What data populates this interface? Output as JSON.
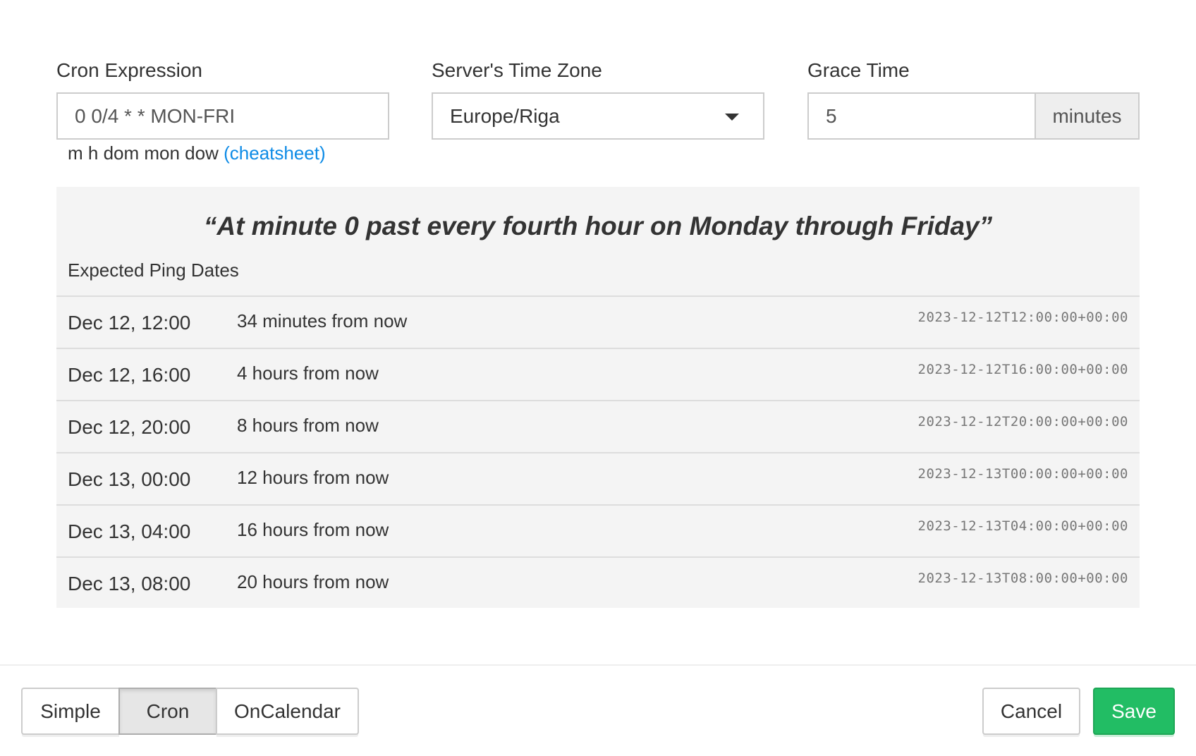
{
  "cron": {
    "label": "Cron Expression",
    "value": "0 0/4 * * MON-FRI",
    "hint": "m h dom mon dow",
    "cheatsheet": "(cheatsheet)"
  },
  "timezone": {
    "label": "Server's Time Zone",
    "value": "Europe/Riga"
  },
  "grace": {
    "label": "Grace Time",
    "value": "5",
    "unit": "minutes"
  },
  "description": "“At minute 0 past every fourth hour on Monday through Friday”",
  "ping_title": "Expected Ping Dates",
  "pings": [
    {
      "date": "Dec 12, 12:00",
      "relative": "34 minutes from now",
      "iso": "2023-12-12T12:00:00+00:00"
    },
    {
      "date": "Dec 12, 16:00",
      "relative": "4 hours from now",
      "iso": "2023-12-12T16:00:00+00:00"
    },
    {
      "date": "Dec 12, 20:00",
      "relative": "8 hours from now",
      "iso": "2023-12-12T20:00:00+00:00"
    },
    {
      "date": "Dec 13, 00:00",
      "relative": "12 hours from now",
      "iso": "2023-12-13T00:00:00+00:00"
    },
    {
      "date": "Dec 13, 04:00",
      "relative": "16 hours from now",
      "iso": "2023-12-13T04:00:00+00:00"
    },
    {
      "date": "Dec 13, 08:00",
      "relative": "20 hours from now",
      "iso": "2023-12-13T08:00:00+00:00"
    }
  ],
  "footer": {
    "modes": [
      "Simple",
      "Cron",
      "OnCalendar"
    ],
    "active_mode": "Cron",
    "cancel": "Cancel",
    "save": "Save"
  },
  "colors": {
    "accent_link": "#0d8be6",
    "save_green": "#22bd64"
  }
}
